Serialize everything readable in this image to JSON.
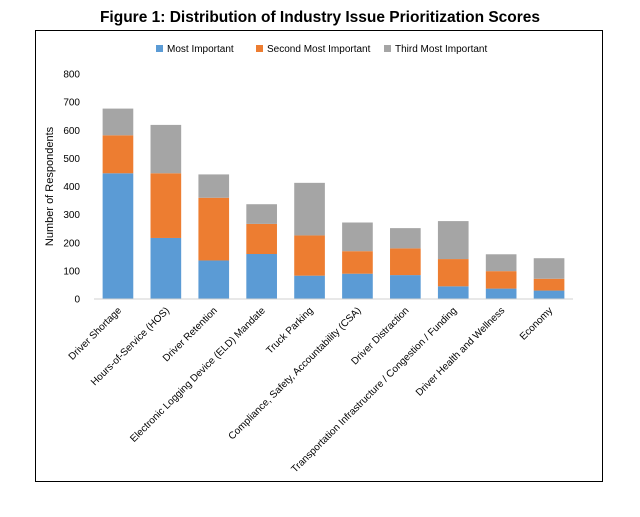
{
  "chart_data": {
    "type": "bar",
    "stacked": true,
    "title": "Figure 1: Distribution of Industry Issue Prioritization Scores",
    "xlabel": "",
    "ylabel": "Number of Respondents",
    "ylim": [
      0,
      800
    ],
    "yticks": [
      0,
      100,
      200,
      300,
      400,
      500,
      600,
      700,
      800
    ],
    "grid": false,
    "legend_position": "top",
    "categories": [
      "Driver Shortage",
      "Hours-of-Service (HOS)",
      "Driver Retention",
      "Electronic Logging Device (ELD) Mandate",
      "Truck Parking",
      "Compliance, Safety, Accountability (CSA)",
      "Driver Distraction",
      "Transportation Infrastructure / Congestion / Funding",
      "Driver Health and Wellness",
      "Economy"
    ],
    "series": [
      {
        "name": "Most Important",
        "color": "#5b9bd5",
        "values": [
          447,
          217,
          137,
          160,
          83,
          90,
          85,
          45,
          37,
          30
        ]
      },
      {
        "name": "Second Most Important",
        "color": "#ed7d31",
        "values": [
          135,
          230,
          223,
          107,
          143,
          80,
          95,
          97,
          62,
          42
        ]
      },
      {
        "name": "Third Most Important",
        "color": "#a5a5a5",
        "values": [
          95,
          172,
          83,
          70,
          187,
          102,
          72,
          135,
          60,
          73
        ]
      }
    ]
  }
}
